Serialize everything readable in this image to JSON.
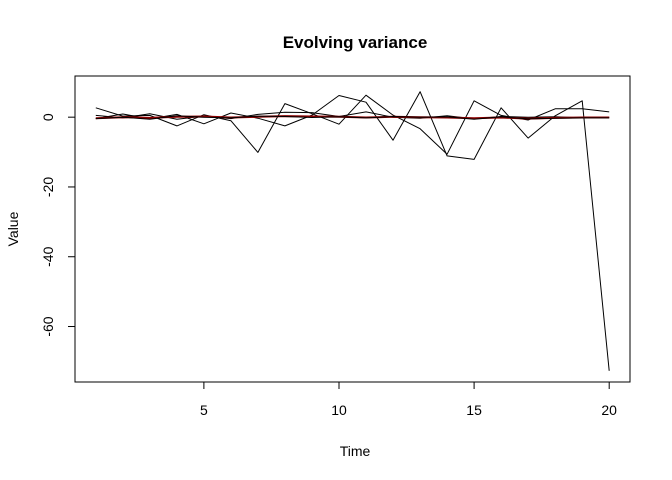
{
  "chart_data": {
    "type": "line",
    "title": "Evolving variance",
    "xlabel": "Time",
    "ylabel": "Value",
    "xlim": [
      0.23,
      20.77
    ],
    "ylim": [
      -75.9,
      11.8
    ],
    "x_ticks": [
      5,
      10,
      15,
      20
    ],
    "y_ticks": [
      0,
      -20,
      -40,
      -60
    ],
    "grid": false,
    "legend": "none",
    "x": [
      1,
      2,
      3,
      4,
      5,
      6,
      7,
      8,
      9,
      10,
      11,
      12,
      13,
      14,
      15,
      16,
      17,
      18,
      19,
      20
    ],
    "series": [
      {
        "color": "#000000",
        "width": 1,
        "values": [
          2.7,
          0.3,
          0.5,
          -2.5,
          0.7,
          -1.0,
          -10.1,
          3.9,
          1.0,
          -2.0,
          6.3,
          0.6,
          -3.3,
          -10.6,
          4.7,
          0.5,
          -0.8,
          2.4,
          2.4,
          1.5
        ]
      },
      {
        "color": "#000000",
        "width": 1,
        "values": [
          -0.4,
          0.9,
          -0.5,
          0.8,
          -1.9,
          1.2,
          -0.3,
          -2.5,
          0.6,
          6.2,
          4.3,
          -6.6,
          7.3,
          -11.1,
          -12.1,
          2.7,
          -6.0,
          0.4,
          4.7,
          -72.7
        ]
      },
      {
        "color": "#000000",
        "width": 1,
        "values": [
          0.5,
          -0.2,
          1.0,
          -0.6,
          0.3,
          -0.4,
          0.8,
          1.4,
          1.3,
          0.2,
          1.5,
          0.0,
          -0.3,
          0.4,
          -0.5,
          0.2,
          0.0,
          0.1,
          -0.2,
          0.0
        ]
      },
      {
        "color": "#8b0000",
        "width": 2,
        "values": [
          -0.3,
          0.0,
          -0.2,
          0.1,
          0.2,
          -0.1,
          0.1,
          0.3,
          0.2,
          0.1,
          -0.1,
          0.1,
          0.0,
          -0.1,
          -0.3,
          -0.1,
          -0.4,
          -0.2,
          -0.1,
          -0.1
        ]
      },
      {
        "color": "#000000",
        "width": 1,
        "values": [
          -0.4,
          0.0,
          -0.6,
          0.4,
          0.0,
          -0.2,
          0.3,
          0.2,
          -0.1,
          0.1,
          -0.2,
          0.2,
          0.0,
          0.1,
          -0.6,
          0.1,
          -0.5,
          -0.3,
          -0.2,
          -0.2
        ]
      }
    ]
  }
}
